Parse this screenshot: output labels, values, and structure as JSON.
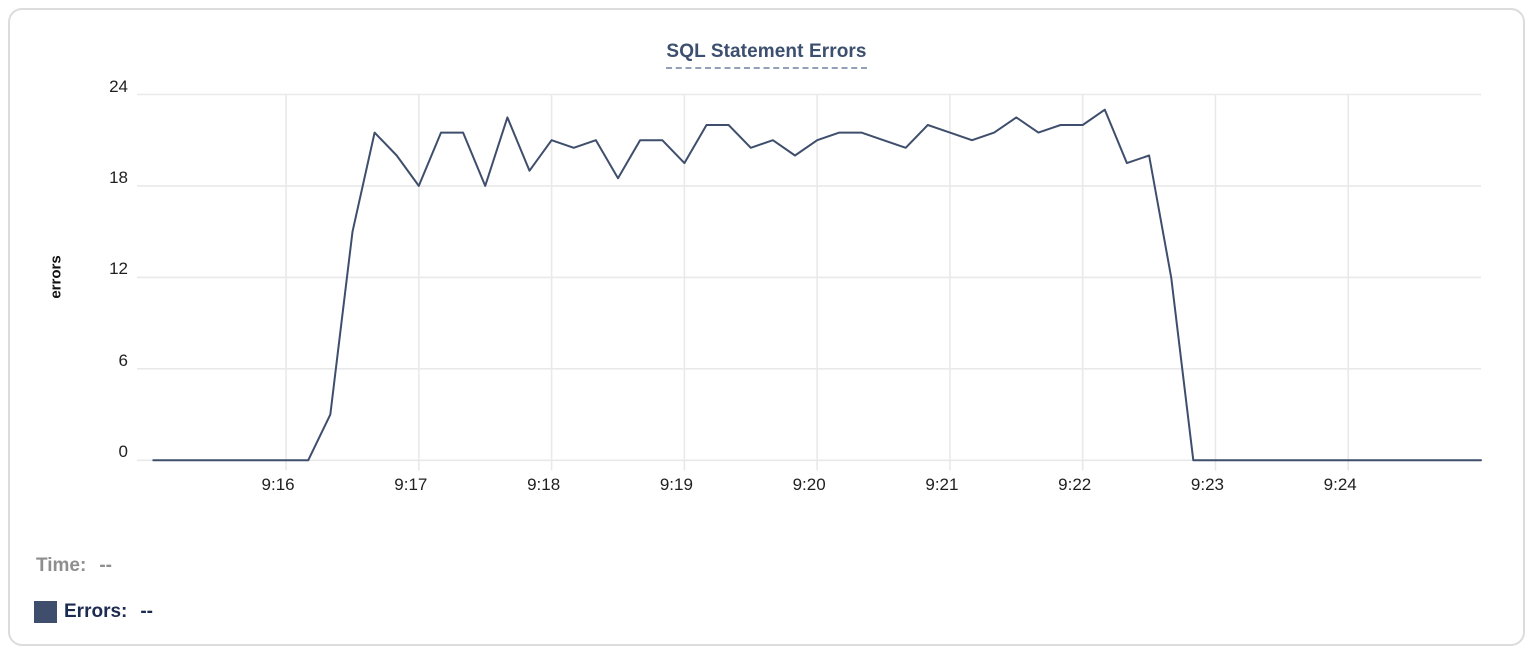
{
  "chart_data": {
    "type": "line",
    "title": "SQL Statement Errors",
    "xlabel": "",
    "ylabel": "errors",
    "x_tick_labels": [
      "9:16",
      "9:17",
      "9:18",
      "9:19",
      "9:20",
      "9:21",
      "9:22",
      "9:23",
      "9:24"
    ],
    "y_ticks": [
      0,
      6,
      12,
      18,
      24
    ],
    "ylim": [
      0,
      24
    ],
    "xlim": [
      "9:15:00",
      "9:25:00"
    ],
    "grid": true,
    "legend_position": "bottom-left",
    "series": [
      {
        "name": "Errors",
        "color": "#3e4e6c",
        "times": [
          "9:15:00",
          "9:15:10",
          "9:15:20",
          "9:15:30",
          "9:15:40",
          "9:15:50",
          "9:16:00",
          "9:16:10",
          "9:16:20",
          "9:16:30",
          "9:16:40",
          "9:16:50",
          "9:17:00",
          "9:17:10",
          "9:17:20",
          "9:17:30",
          "9:17:40",
          "9:17:50",
          "9:18:00",
          "9:18:10",
          "9:18:20",
          "9:18:30",
          "9:18:40",
          "9:18:50",
          "9:19:00",
          "9:19:10",
          "9:19:20",
          "9:19:30",
          "9:19:40",
          "9:19:50",
          "9:20:00",
          "9:20:10",
          "9:20:20",
          "9:20:30",
          "9:20:40",
          "9:20:50",
          "9:21:00",
          "9:21:10",
          "9:21:20",
          "9:21:30",
          "9:21:40",
          "9:21:50",
          "9:22:00",
          "9:22:10",
          "9:22:20",
          "9:22:30",
          "9:22:40",
          "9:22:50",
          "9:23:00",
          "9:23:10",
          "9:23:20",
          "9:23:30",
          "9:23:40",
          "9:23:50",
          "9:24:00",
          "9:24:10",
          "9:24:20",
          "9:24:30",
          "9:24:40",
          "9:24:50",
          "9:25:00"
        ],
        "values": [
          0,
          0,
          0,
          0,
          0,
          0,
          0,
          0,
          3,
          15,
          21.5,
          20,
          18,
          21.5,
          21.5,
          18,
          22.5,
          19,
          21,
          20.5,
          21,
          18.5,
          21,
          21,
          19.5,
          22,
          22,
          20.5,
          21,
          20,
          21,
          21.5,
          21.5,
          21,
          20.5,
          22,
          21.5,
          21,
          21.5,
          22.5,
          21.5,
          22,
          22,
          23,
          19.5,
          20,
          12,
          0,
          0,
          0,
          0,
          0,
          0,
          0,
          0,
          0,
          0,
          0,
          0,
          0,
          0
        ]
      }
    ]
  },
  "tooltip_readout": {
    "time_label": "Time:",
    "time_value": "--",
    "errors_label": "Errors:",
    "errors_value": "--"
  },
  "colors": {
    "series_line": "#3e4e6c",
    "legend_swatch": "#3e4e6c",
    "title_text": "#3c4f6e",
    "title_underline": "#93a0b8",
    "grid_line": "#e9e9e9",
    "tick_text": "#1f1f1f",
    "muted_text": "#8e8e8e",
    "dark_navy_text": "#1c2b50",
    "card_border": "#dcdcdc",
    "card_background": "#ffffff"
  }
}
